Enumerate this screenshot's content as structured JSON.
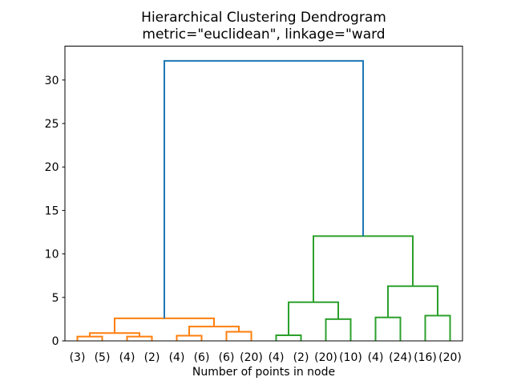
{
  "colors": {
    "blue": "#1f77b4",
    "orange": "#ff7f0e",
    "green": "#2ca02c",
    "axis": "#000000",
    "background": "#ffffff"
  },
  "chart_data": {
    "type": "dendrogram",
    "title": "Hierarchical Clustering Dendrogram",
    "subtitle": "metric=\"euclidean\", linkage=\"ward",
    "xlabel": "Number of points in node",
    "ylabel": "",
    "grid": false,
    "legend": null,
    "xlim": [
      0,
      160
    ],
    "ylim": [
      0,
      33.9
    ],
    "yticks": [
      0,
      5,
      10,
      15,
      20,
      25,
      30
    ],
    "leaves": [
      {
        "label": "(3)",
        "x": 5
      },
      {
        "label": "(5)",
        "x": 15
      },
      {
        "label": "(4)",
        "x": 25
      },
      {
        "label": "(2)",
        "x": 35
      },
      {
        "label": "(4)",
        "x": 45
      },
      {
        "label": "(6)",
        "x": 55
      },
      {
        "label": "(6)",
        "x": 65
      },
      {
        "label": "(20)",
        "x": 75
      },
      {
        "label": "(4)",
        "x": 85
      },
      {
        "label": "(2)",
        "x": 95
      },
      {
        "label": "(20)",
        "x": 105
      },
      {
        "label": "(10)",
        "x": 115
      },
      {
        "label": "(4)",
        "x": 125
      },
      {
        "label": "(24)",
        "x": 135
      },
      {
        "label": "(16)",
        "x": 145
      },
      {
        "label": "(20)",
        "x": 155
      }
    ],
    "links": [
      {
        "x1": 5,
        "x2": 15,
        "h1": 0,
        "h2": 0,
        "h": 0.5,
        "color": "orange"
      },
      {
        "x1": 25,
        "x2": 35,
        "h1": 0,
        "h2": 0,
        "h": 0.5,
        "color": "orange"
      },
      {
        "x1": 10,
        "x2": 30,
        "h1": 0.5,
        "h2": 0.5,
        "h": 0.9,
        "color": "orange"
      },
      {
        "x1": 45,
        "x2": 55,
        "h1": 0,
        "h2": 0,
        "h": 0.6,
        "color": "orange"
      },
      {
        "x1": 65,
        "x2": 75,
        "h1": 0,
        "h2": 0,
        "h": 1.05,
        "color": "orange"
      },
      {
        "x1": 50,
        "x2": 70,
        "h1": 0.6,
        "h2": 1.05,
        "h": 1.65,
        "color": "orange"
      },
      {
        "x1": 20,
        "x2": 60,
        "h1": 0.9,
        "h2": 1.65,
        "h": 2.6,
        "color": "orange"
      },
      {
        "x1": 85,
        "x2": 95,
        "h1": 0,
        "h2": 0,
        "h": 0.65,
        "color": "green"
      },
      {
        "x1": 105,
        "x2": 115,
        "h1": 0,
        "h2": 0,
        "h": 2.5,
        "color": "green"
      },
      {
        "x1": 90,
        "x2": 110,
        "h1": 0.65,
        "h2": 2.5,
        "h": 4.45,
        "color": "green"
      },
      {
        "x1": 125,
        "x2": 135,
        "h1": 0,
        "h2": 0,
        "h": 2.7,
        "color": "green"
      },
      {
        "x1": 145,
        "x2": 155,
        "h1": 0,
        "h2": 0,
        "h": 2.9,
        "color": "green"
      },
      {
        "x1": 130,
        "x2": 150,
        "h1": 2.7,
        "h2": 2.9,
        "h": 6.3,
        "color": "green"
      },
      {
        "x1": 100,
        "x2": 140,
        "h1": 4.45,
        "h2": 6.3,
        "h": 12.05,
        "color": "green"
      },
      {
        "x1": 40,
        "x2": 120,
        "h1": 2.6,
        "h2": 12.05,
        "h": 32.2,
        "color": "blue"
      }
    ]
  }
}
